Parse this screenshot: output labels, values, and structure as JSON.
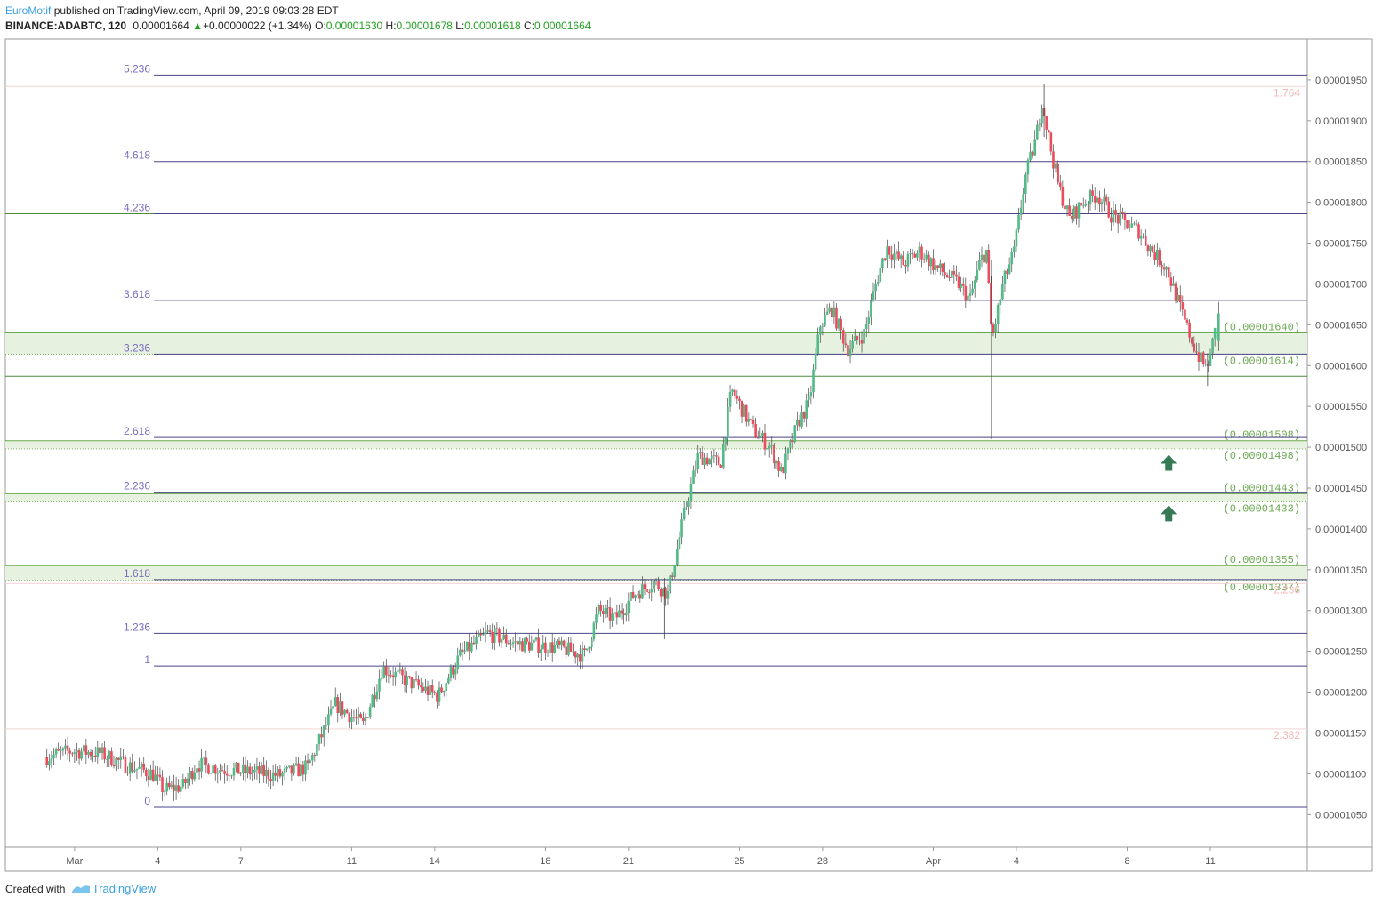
{
  "header": {
    "author": "EuroMotif",
    "published_text": "published on TradingView.com, April 09, 2019 09:03:28 EDT",
    "symbol": "BINANCE:ADABTC, 120",
    "last": "0.00001664",
    "change_arrow": "▲",
    "change": "+0.00000022 (+1.34%)",
    "o_label": "O:",
    "o_value": "0.00001630",
    "h_label": "H:",
    "h_value": "0.00001678",
    "l_label": "L:",
    "l_value": "0.00001618",
    "c_label": "C:",
    "c_value": "0.00001664"
  },
  "footer": {
    "created_with": "Created with",
    "brand": "TradingView"
  },
  "colors": {
    "up": "#53b987",
    "down": "#eb4d5c",
    "fib": "#7c6bbf",
    "zone_line": "#6aa84f",
    "zone_fill": "#e6f2df",
    "pink": "#f4b6b6",
    "arrow": "#357a55",
    "axis": "#555555"
  },
  "chart_data": {
    "type": "candlestick",
    "symbol": "ADABTC",
    "y_range": [
      1.01e-05,
      2e-05
    ],
    "x_axis": {
      "ticks": [
        {
          "label": "Mar",
          "day": 1
        },
        {
          "label": "4",
          "day": 4
        },
        {
          "label": "7",
          "day": 7
        },
        {
          "label": "11",
          "day": 11
        },
        {
          "label": "14",
          "day": 14
        },
        {
          "label": "18",
          "day": 18
        },
        {
          "label": "21",
          "day": 21
        },
        {
          "label": "25",
          "day": 25
        },
        {
          "label": "28",
          "day": 28
        },
        {
          "label": "Apr",
          "day": 32
        },
        {
          "label": "4",
          "day": 35
        },
        {
          "label": "8",
          "day": 39
        },
        {
          "label": "11",
          "day": 42
        }
      ]
    },
    "y_axis": {
      "ticks": [
        "0.00001050",
        "0.00001100",
        "0.00001150",
        "0.00001200",
        "0.00001250",
        "0.00001300",
        "0.00001350",
        "0.00001400",
        "0.00001450",
        "0.00001500",
        "0.00001550",
        "0.00001600",
        "0.00001650",
        "0.00001700",
        "0.00001750",
        "0.00001800",
        "0.00001850",
        "0.00001900",
        "0.00001950"
      ]
    },
    "fib_levels": [
      {
        "label": "0",
        "price": 1.059e-05
      },
      {
        "label": "1",
        "price": 1.232e-05
      },
      {
        "label": "1.236",
        "price": 1.272e-05
      },
      {
        "label": "1.618",
        "price": 1.338e-05
      },
      {
        "label": "2.236",
        "price": 1.445e-05
      },
      {
        "label": "2.618",
        "price": 1.512e-05
      },
      {
        "label": "3.236",
        "price": 1.614e-05
      },
      {
        "label": "3.618",
        "price": 1.68e-05
      },
      {
        "label": "4.236",
        "price": 1.786e-05
      },
      {
        "label": "4.618",
        "price": 1.85e-05
      },
      {
        "label": "5.236",
        "price": 1.956e-05
      }
    ],
    "pink_levels": [
      {
        "label": "1.764",
        "price": 1.942e-05
      },
      {
        "label": "2.382",
        "price": 1.155e-05
      },
      {
        "label": "2.236",
        "price": 1.333e-05
      }
    ],
    "green_lines": [
      1.786e-05,
      1.587e-05
    ],
    "zones": [
      {
        "top": 1.64e-05,
        "bottom": 1.614e-05,
        "top_label": "(0.00001640)",
        "bottom_label": "(0.00001614)"
      },
      {
        "top": 1.508e-05,
        "bottom": 1.498e-05,
        "top_label": "(0.00001508)",
        "bottom_label": "(0.00001498)"
      },
      {
        "top": 1.443e-05,
        "bottom": 1.433e-05,
        "top_label": "(0.00001443)",
        "bottom_label": "(0.00001433)"
      },
      {
        "top": 1.355e-05,
        "bottom": 1.337e-05,
        "top_label": "(0.00001355)",
        "bottom_label": "(0.00001337)"
      }
    ],
    "arrows": [
      {
        "direction": "up",
        "day": 40.5,
        "price": 1.48e-05
      },
      {
        "direction": "up",
        "day": 40.5,
        "price": 1.418e-05
      }
    ],
    "price_path": [
      {
        "day": 0.0,
        "price": 1.12e-05
      },
      {
        "day": 1.0,
        "price": 1.128e-05
      },
      {
        "day": 2.0,
        "price": 1.125e-05
      },
      {
        "day": 3.0,
        "price": 1.11e-05
      },
      {
        "day": 3.9,
        "price": 1.1e-05
      },
      {
        "day": 4.3,
        "price": 1.08e-05
      },
      {
        "day": 5.0,
        "price": 1.085e-05
      },
      {
        "day": 5.5,
        "price": 1.112e-05
      },
      {
        "day": 6.5,
        "price": 1.105e-05
      },
      {
        "day": 7.5,
        "price": 1.102e-05
      },
      {
        "day": 8.5,
        "price": 1.098e-05
      },
      {
        "day": 9.5,
        "price": 1.108e-05
      },
      {
        "day": 10.5,
        "price": 1.185e-05
      },
      {
        "day": 11.5,
        "price": 1.16e-05
      },
      {
        "day": 12.2,
        "price": 1.23e-05
      },
      {
        "day": 13.0,
        "price": 1.215e-05
      },
      {
        "day": 14.2,
        "price": 1.195e-05
      },
      {
        "day": 15.0,
        "price": 1.245e-05
      },
      {
        "day": 16.0,
        "price": 1.272e-05
      },
      {
        "day": 17.0,
        "price": 1.26e-05
      },
      {
        "day": 18.5,
        "price": 1.255e-05
      },
      {
        "day": 19.5,
        "price": 1.245e-05
      },
      {
        "day": 20.0,
        "price": 1.3e-05
      },
      {
        "day": 20.6,
        "price": 1.29e-05
      },
      {
        "day": 21.3,
        "price": 1.32e-05
      },
      {
        "day": 22.0,
        "price": 1.335e-05
      },
      {
        "day": 22.5,
        "price": 1.32e-05
      },
      {
        "day": 23.1,
        "price": 1.42e-05
      },
      {
        "day": 23.6,
        "price": 1.49e-05
      },
      {
        "day": 24.4,
        "price": 1.48e-05
      },
      {
        "day": 24.8,
        "price": 1.57e-05
      },
      {
        "day": 25.2,
        "price": 1.545e-05
      },
      {
        "day": 25.6,
        "price": 1.52e-05
      },
      {
        "day": 26.2,
        "price": 1.5e-05
      },
      {
        "day": 26.6,
        "price": 1.468e-05
      },
      {
        "day": 27.2,
        "price": 1.53e-05
      },
      {
        "day": 27.6,
        "price": 1.555e-05
      },
      {
        "day": 28.0,
        "price": 1.65e-05
      },
      {
        "day": 28.4,
        "price": 1.67e-05
      },
      {
        "day": 29.0,
        "price": 1.62e-05
      },
      {
        "day": 29.6,
        "price": 1.64e-05
      },
      {
        "day": 30.0,
        "price": 1.7e-05
      },
      {
        "day": 30.4,
        "price": 1.745e-05
      },
      {
        "day": 31.0,
        "price": 1.725e-05
      },
      {
        "day": 31.6,
        "price": 1.74e-05
      },
      {
        "day": 32.2,
        "price": 1.72e-05
      },
      {
        "day": 33.0,
        "price": 1.7e-05
      },
      {
        "day": 33.4,
        "price": 1.68e-05
      },
      {
        "day": 33.8,
        "price": 1.73e-05
      },
      {
        "day": 34.0,
        "price": 1.74e-05
      },
      {
        "day": 34.2,
        "price": 1.63e-05
      },
      {
        "day": 34.6,
        "price": 1.7e-05
      },
      {
        "day": 35.0,
        "price": 1.74e-05
      },
      {
        "day": 35.4,
        "price": 1.83e-05
      },
      {
        "day": 35.8,
        "price": 1.88e-05
      },
      {
        "day": 36.0,
        "price": 1.925e-05
      },
      {
        "day": 36.3,
        "price": 1.87e-05
      },
      {
        "day": 36.6,
        "price": 1.82e-05
      },
      {
        "day": 37.0,
        "price": 1.78e-05
      },
      {
        "day": 37.5,
        "price": 1.8e-05
      },
      {
        "day": 38.0,
        "price": 1.81e-05
      },
      {
        "day": 38.5,
        "price": 1.785e-05
      },
      {
        "day": 39.0,
        "price": 1.775e-05
      },
      {
        "day": 39.5,
        "price": 1.765e-05
      },
      {
        "day": 40.0,
        "price": 1.74e-05
      },
      {
        "day": 40.5,
        "price": 1.72e-05
      },
      {
        "day": 40.8,
        "price": 1.69e-05
      },
      {
        "day": 41.2,
        "price": 1.65e-05
      },
      {
        "day": 41.6,
        "price": 1.615e-05
      },
      {
        "day": 41.9,
        "price": 1.598e-05
      },
      {
        "day": 42.1,
        "price": 1.61e-05
      },
      {
        "day": 42.3,
        "price": 1.664e-05
      }
    ],
    "last_candle": {
      "open": 1.63e-05,
      "high": 1.678e-05,
      "low": 1.618e-05,
      "close": 1.664e-05
    }
  }
}
